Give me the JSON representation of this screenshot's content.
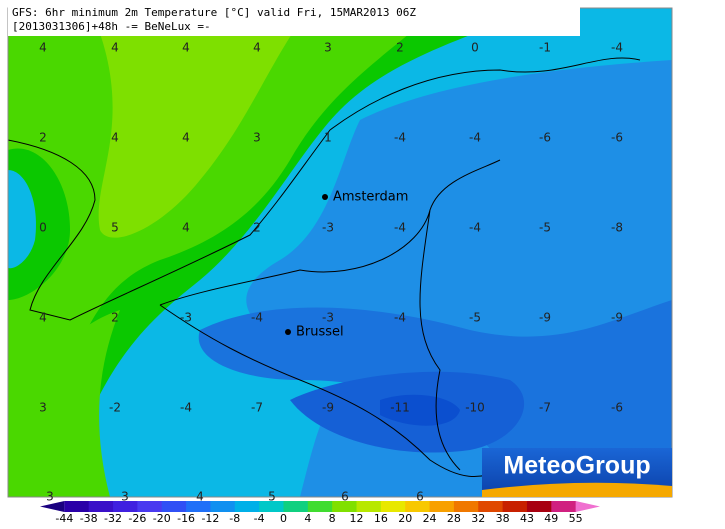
{
  "header": {
    "line1": "GFS: 6hr minimum 2m Temperature [°C] valid Fri, 15MAR2013 06Z",
    "line2": "[2013031306]+48h  -= BeNeLux =-"
  },
  "grid": {
    "rows": [
      [
        4,
        4,
        4,
        4,
        3,
        2,
        0,
        -1,
        -4
      ],
      [
        2,
        4,
        4,
        3,
        1,
        -4,
        -4,
        -6,
        -6
      ],
      [
        0,
        5,
        4,
        2,
        -3,
        -4,
        -4,
        -5,
        -8
      ],
      [
        4,
        2,
        -3,
        -4,
        -3,
        -4,
        -5,
        -9,
        -9
      ],
      [
        3,
        -2,
        -4,
        -7,
        -9,
        -11,
        -10,
        -7,
        -6
      ],
      [
        3,
        3,
        4,
        5,
        6,
        6
      ]
    ]
  },
  "cities": [
    {
      "name": "Amsterdam"
    },
    {
      "name": "Brussel"
    }
  ],
  "legend": {
    "ticks": [
      -44,
      -38,
      -32,
      -26,
      -20,
      -16,
      -12,
      -8,
      -4,
      0,
      4,
      8,
      12,
      16,
      20,
      24,
      28,
      32,
      38,
      43,
      49,
      55
    ]
  },
  "logo": "MeteoGroup"
}
